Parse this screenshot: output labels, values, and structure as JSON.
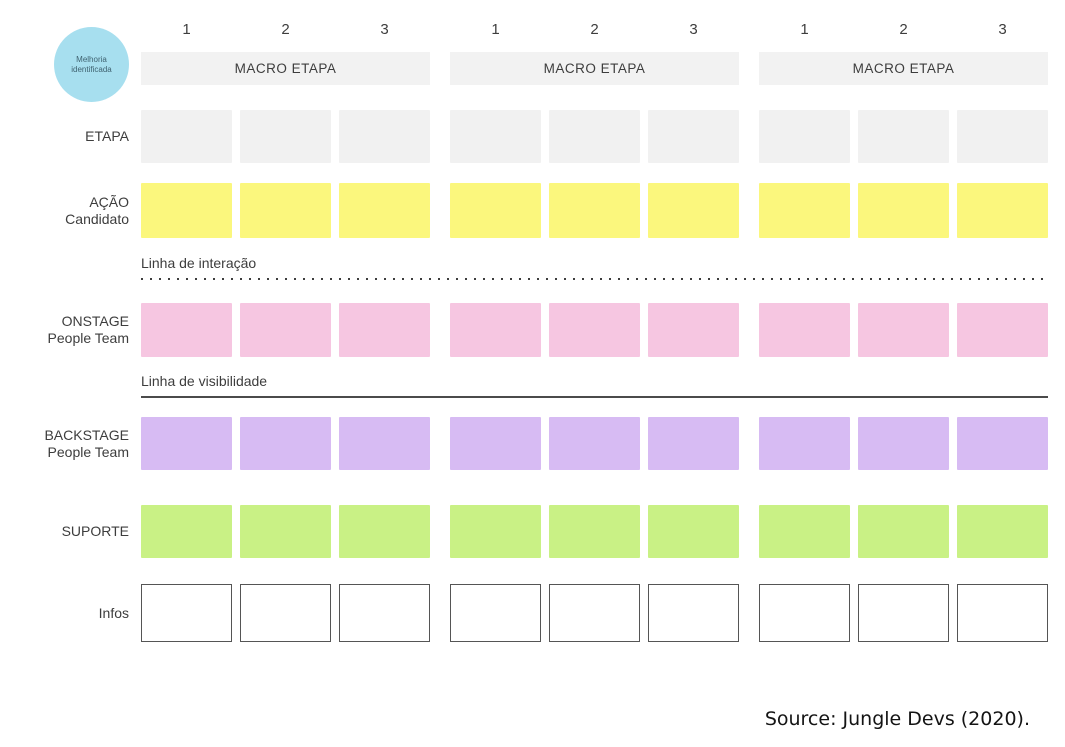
{
  "diagram": {
    "badge": {
      "line1": "Melhoria",
      "line2": "identificada"
    },
    "column_numbers": [
      "1",
      "2",
      "3"
    ],
    "macro_label": "MACRO ETAPA",
    "group_count": 3,
    "columns_per_group": 3
  },
  "rows": [
    {
      "id": "etapa",
      "label_lines": [
        "ETAPA"
      ],
      "color": "#f1f1f1"
    },
    {
      "id": "acao",
      "label_lines": [
        "AÇÃO",
        "Candidato"
      ],
      "color": "#fbf77d"
    },
    {
      "id": "onstage",
      "label_lines": [
        "ONSTAGE",
        "People Team"
      ],
      "color": "#f6c6e1"
    },
    {
      "id": "backstage",
      "label_lines": [
        "BACKSTAGE",
        "People Team"
      ],
      "color": "#d7bbf3"
    },
    {
      "id": "suporte",
      "label_lines": [
        "SUPORTE"
      ],
      "color": "#c9f185"
    },
    {
      "id": "infos",
      "label_lines": [
        "Infos"
      ],
      "color": "#ffffff"
    }
  ],
  "separators": {
    "interaction": "Linha de interação",
    "visibility": "Linha de visibilidade"
  },
  "footer": {
    "source": "Source: Jungle Devs (2020)."
  },
  "colors": {
    "badge": "#a7dfef",
    "macro_bar": "#f2f2f2",
    "etapa_cell": "#f1f1f1",
    "acao_cell": "#fbf77d",
    "onstage_cell": "#f6c6e1",
    "backstage_cell": "#d7bbf3",
    "suporte_cell": "#c9f185",
    "infos_border": "#555555",
    "text": "#3d3d3d"
  }
}
